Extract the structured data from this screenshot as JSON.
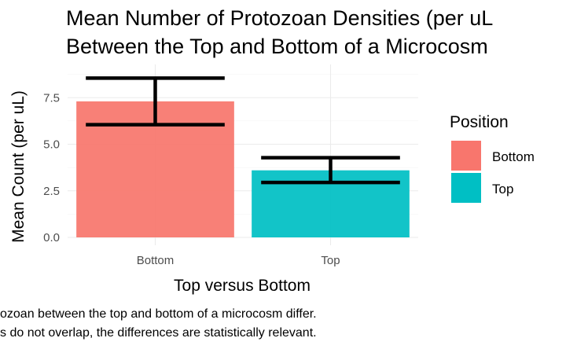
{
  "chart_data": {
    "type": "bar",
    "title_lines": [
      "Mean Number of Protozoan Densities (per uL",
      "Between the Top and Bottom of a Microcosm"
    ],
    "xlabel": "Top versus Bottom",
    "ylabel": "Mean Count (per uL)",
    "categories": [
      "Bottom",
      "Top"
    ],
    "values": [
      7.3,
      3.6
    ],
    "error_low": [
      6.05,
      2.95
    ],
    "error_high": [
      8.55,
      4.28
    ],
    "colors": [
      "#f8766d",
      "#00bfc4"
    ],
    "ylim": [
      0,
      9
    ],
    "yticks": [
      0,
      2.5,
      5,
      7.5
    ],
    "ytick_labels": [
      "0.0",
      "2.5",
      "5.0",
      "7.5"
    ],
    "grid": true,
    "legend": {
      "title": "Position",
      "placement": "right",
      "entries": [
        {
          "label": "Bottom",
          "color": "#f8766d"
        },
        {
          "label": "Top",
          "color": "#00bfc4"
        }
      ]
    },
    "caption_lines": [
      "ozoan between the top and bottom of a microcosm differ.",
      "s do not overlap, the differences are statistically relevant."
    ]
  }
}
